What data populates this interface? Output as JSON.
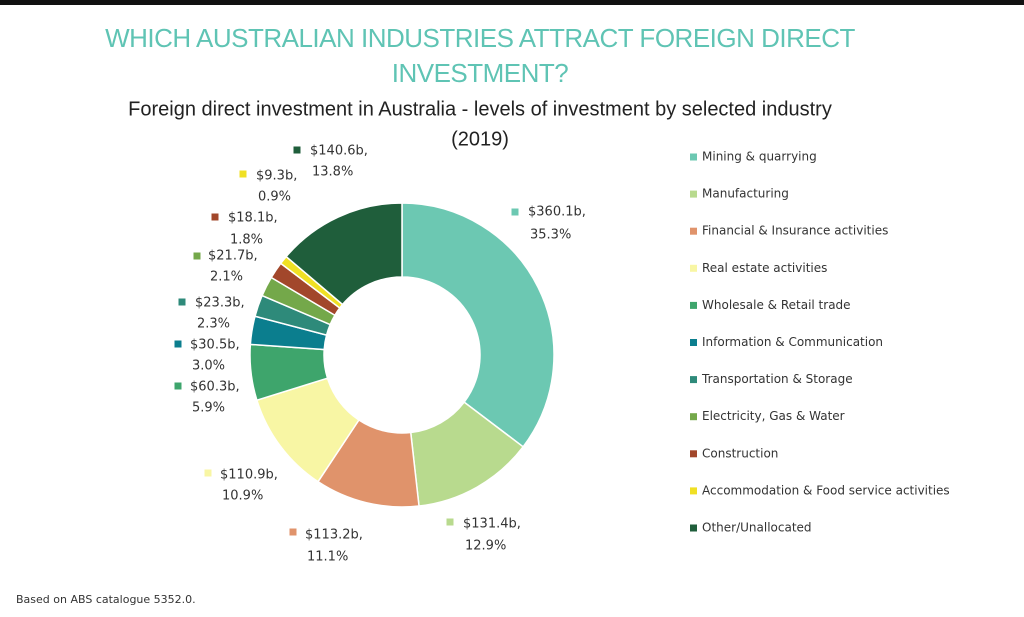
{
  "chart_data": {
    "type": "donut",
    "title": [
      "WHICH AUSTRALIAN INDUSTRIES ATTRACT FOREIGN DIRECT",
      "INVESTMENT?"
    ],
    "subtitle": [
      "Foreign direct investment in Australia - levels of investment by selected industry",
      "(2019)"
    ],
    "categories": [
      "Mining & quarrying",
      "Manufacturing",
      "Financial & Insurance activities",
      "Real estate activities",
      "Wholesale & Retail trade",
      "Information & Communication",
      "Transportation & Storage",
      "Electricity, Gas & Water",
      "Construction",
      "Accommodation & Food service activities",
      "Other/Unallocated"
    ],
    "values": [
      360.1,
      131.4,
      113.2,
      110.9,
      60.3,
      30.5,
      23.3,
      21.7,
      18.1,
      9.3,
      140.6
    ],
    "value_labels": [
      "$360.1b,",
      "$131.4b,",
      "$113.2b,",
      "$110.9b,",
      "$60.3b,",
      "$30.5b,",
      "$23.3b,",
      "$21.7b,",
      "$18.1b,",
      "$9.3b,",
      "$140.6b,"
    ],
    "percentages": [
      35.3,
      12.9,
      11.1,
      10.9,
      5.9,
      3.0,
      2.3,
      2.1,
      1.8,
      0.9,
      13.8
    ],
    "percentage_labels": [
      "35.3%",
      "12.9%",
      "11.1%",
      "10.9%",
      "5.9%",
      "3.0%",
      "2.3%",
      "2.1%",
      "1.8%",
      "0.9%",
      "13.8%"
    ],
    "colors": [
      "#6cc8b2",
      "#b8da8e",
      "#e0936b",
      "#f8f6a4",
      "#3ea56c",
      "#0b7e8e",
      "#2e8a7a",
      "#74a84a",
      "#a2472b",
      "#f0e024",
      "#1f5e3b"
    ],
    "legend": "right",
    "footnote": "Based on ABS catalogue 5352.0."
  }
}
